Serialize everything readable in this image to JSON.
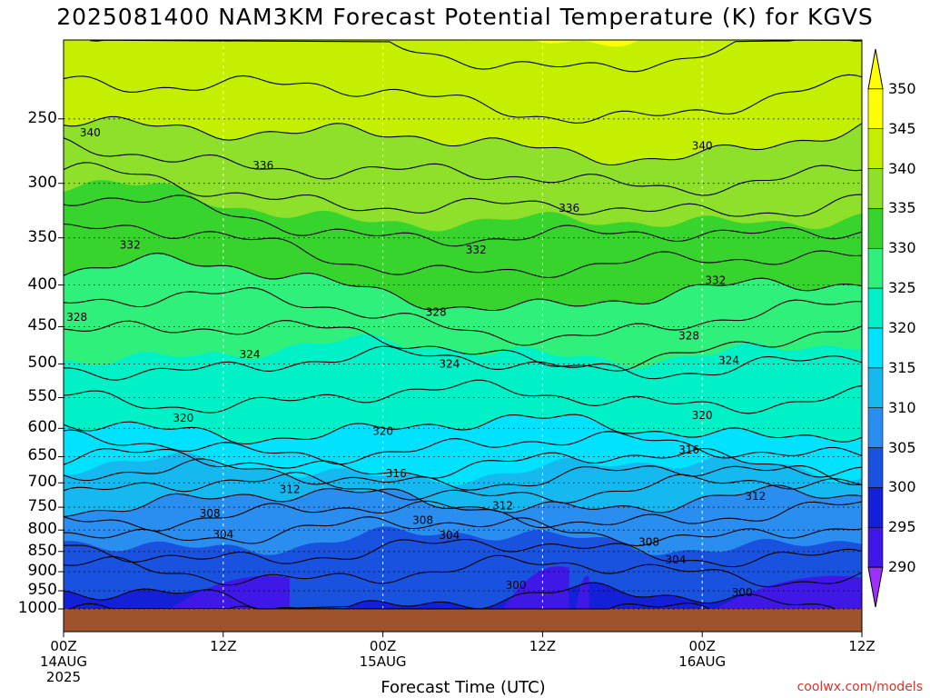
{
  "title": "2025081400 NAM3KM Forecast Potential Temperature (K) for KGVS",
  "xlabel": "Forecast Time (UTC)",
  "credit": "coolwx.com/models",
  "x_ticks": [
    {
      "lines": [
        "00Z",
        "14AUG",
        "2025"
      ]
    },
    {
      "lines": [
        "12Z"
      ]
    },
    {
      "lines": [
        "00Z",
        "15AUG"
      ]
    },
    {
      "lines": [
        "12Z"
      ]
    },
    {
      "lines": [
        "00Z",
        "16AUG"
      ]
    },
    {
      "lines": [
        "12Z"
      ]
    }
  ],
  "colorbar": {
    "levels": [
      290,
      295,
      300,
      305,
      310,
      315,
      320,
      325,
      330,
      335,
      340,
      345,
      350
    ],
    "colors": [
      "#9b30ff",
      "#3f18e8",
      "#1420d8",
      "#1a52e0",
      "#2a8ef0",
      "#16b8f0",
      "#00e2ff",
      "#00f0c8",
      "#2ef07a",
      "#37d42e",
      "#8ee02a",
      "#c4f000",
      "#ffff00"
    ]
  },
  "chart_data": {
    "type": "heatmap",
    "title": "2025081400 NAM3KM Forecast Potential Temperature (K) for KGVS",
    "xlabel": "Forecast Time (UTC)",
    "ylabel": "",
    "units": "K",
    "x_hours": [
      0,
      6,
      12,
      18,
      24,
      30,
      36,
      42,
      48,
      54,
      60
    ],
    "y_pressure_hpa": [
      1000,
      950,
      900,
      850,
      800,
      750,
      700,
      650,
      600,
      550,
      500,
      450,
      400,
      350,
      300,
      250
    ],
    "y_ticks": [
      250,
      300,
      350,
      400,
      450,
      500,
      550,
      600,
      650,
      700,
      750,
      800,
      850,
      900,
      950,
      1000
    ],
    "ylim": [
      1000,
      200
    ],
    "xlim": [
      0,
      60
    ],
    "contour_levels": [
      300,
      304,
      308,
      312,
      316,
      320,
      324,
      328,
      332,
      336,
      340
    ],
    "contour_labels": [
      {
        "value": 340,
        "hour": 2,
        "pressure": 260
      },
      {
        "value": 336,
        "hour": 15,
        "pressure": 285
      },
      {
        "value": 332,
        "hour": 5,
        "pressure": 357
      },
      {
        "value": 328,
        "hour": 1,
        "pressure": 438
      },
      {
        "value": 324,
        "hour": 14,
        "pressure": 487
      },
      {
        "value": 320,
        "hour": 9,
        "pressure": 583
      },
      {
        "value": 316,
        "hour": 25,
        "pressure": 682
      },
      {
        "value": 312,
        "hour": 17,
        "pressure": 713
      },
      {
        "value": 308,
        "hour": 11,
        "pressure": 763
      },
      {
        "value": 304,
        "hour": 12,
        "pressure": 810
      },
      {
        "value": 332,
        "hour": 31,
        "pressure": 362
      },
      {
        "value": 328,
        "hour": 28,
        "pressure": 432
      },
      {
        "value": 324,
        "hour": 29,
        "pressure": 500
      },
      {
        "value": 320,
        "hour": 24,
        "pressure": 605
      },
      {
        "value": 308,
        "hour": 27,
        "pressure": 778
      },
      {
        "value": 304,
        "hour": 29,
        "pressure": 812
      },
      {
        "value": 336,
        "hour": 38,
        "pressure": 322
      },
      {
        "value": 312,
        "hour": 33,
        "pressure": 747
      },
      {
        "value": 300,
        "hour": 34,
        "pressure": 935
      },
      {
        "value": 340,
        "hour": 48,
        "pressure": 270
      },
      {
        "value": 332,
        "hour": 49,
        "pressure": 395
      },
      {
        "value": 328,
        "hour": 47,
        "pressure": 462
      },
      {
        "value": 324,
        "hour": 50,
        "pressure": 495
      },
      {
        "value": 320,
        "hour": 48,
        "pressure": 578
      },
      {
        "value": 316,
        "hour": 47,
        "pressure": 638
      },
      {
        "value": 312,
        "hour": 52,
        "pressure": 727
      },
      {
        "value": 308,
        "hour": 44,
        "pressure": 828
      },
      {
        "value": 304,
        "hour": 46,
        "pressure": 870
      },
      {
        "value": 300,
        "hour": 51,
        "pressure": 955
      }
    ],
    "theta_profile": [
      {
        "pressure": 1000,
        "theta": 299
      },
      {
        "pressure": 950,
        "theta": 301
      },
      {
        "pressure": 900,
        "theta": 302
      },
      {
        "pressure": 850,
        "theta": 304
      },
      {
        "pressure": 800,
        "theta": 306
      },
      {
        "pressure": 750,
        "theta": 309
      },
      {
        "pressure": 700,
        "theta": 313
      },
      {
        "pressure": 650,
        "theta": 317
      },
      {
        "pressure": 600,
        "theta": 320
      },
      {
        "pressure": 550,
        "theta": 322
      },
      {
        "pressure": 500,
        "theta": 324
      },
      {
        "pressure": 450,
        "theta": 327
      },
      {
        "pressure": 400,
        "theta": 330
      },
      {
        "pressure": 350,
        "theta": 333
      },
      {
        "pressure": 300,
        "theta": 337
      },
      {
        "pressure": 250,
        "theta": 341
      }
    ],
    "grid": true
  }
}
